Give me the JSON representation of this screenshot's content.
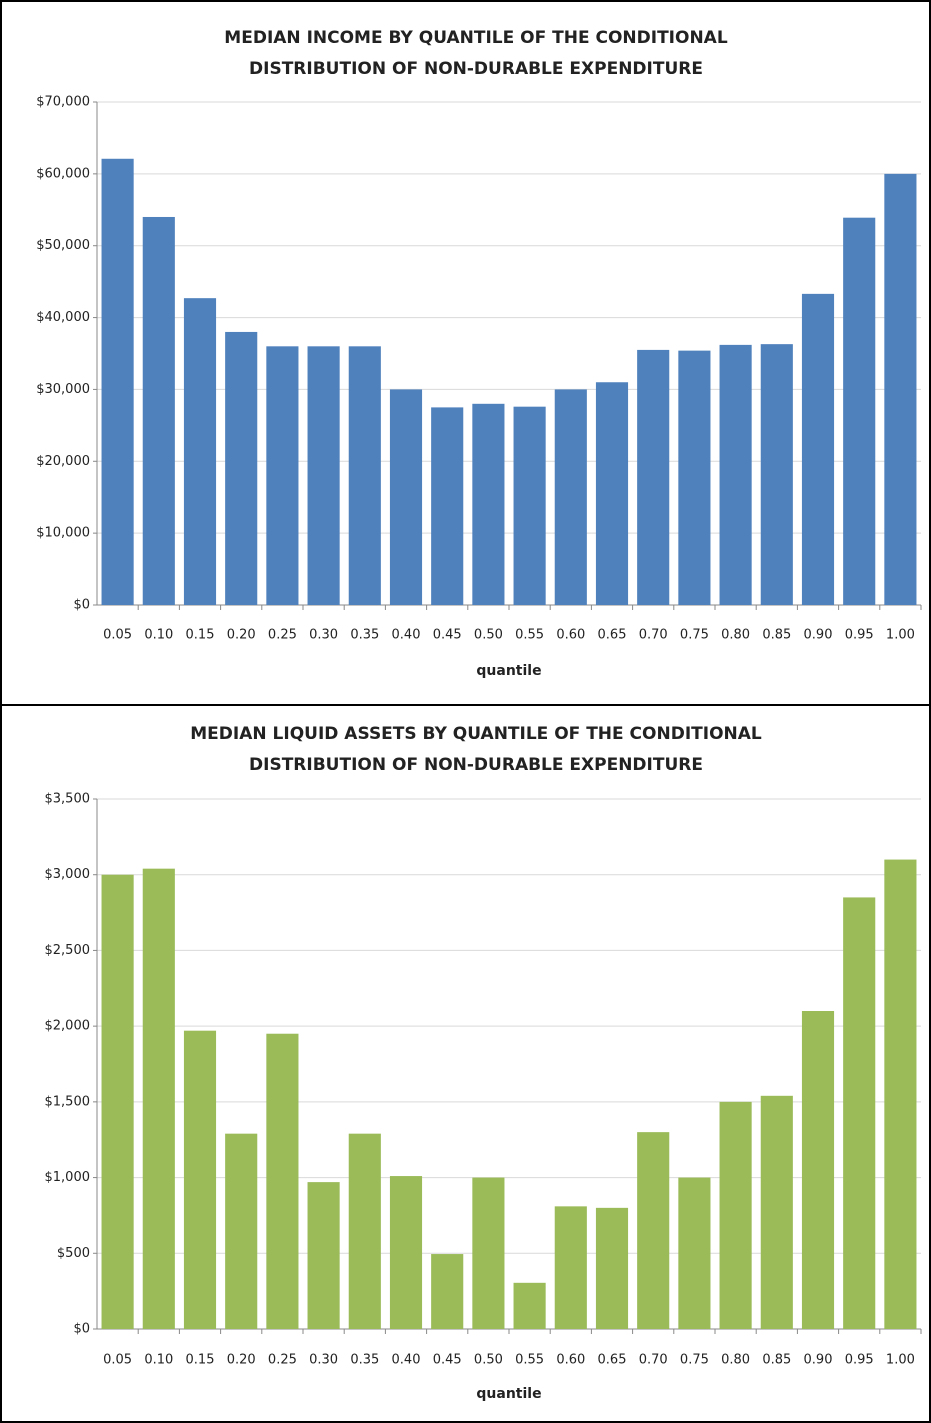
{
  "chart_data": [
    {
      "type": "bar",
      "title": [
        "MEDIAN INCOME BY QUANTILE  OF THE CONDITIONAL",
        "DISTRIBUTION OF NON-DURABLE EXPENDITURE"
      ],
      "x_label": "quantile",
      "categories": [
        "0.05",
        "0.10",
        "0.15",
        "0.20",
        "0.25",
        "0.30",
        "0.35",
        "0.40",
        "0.45",
        "0.50",
        "0.55",
        "0.60",
        "0.65",
        "0.70",
        "0.75",
        "0.80",
        "0.85",
        "0.90",
        "0.95",
        "1.00"
      ],
      "values": [
        62100,
        54000,
        42700,
        38000,
        36000,
        36000,
        36000,
        30000,
        27500,
        28000,
        27600,
        30000,
        31000,
        35500,
        35400,
        36200,
        36300,
        43300,
        53900,
        60000
      ],
      "color": "#4f81bd",
      "ylim": [
        0,
        70000
      ],
      "yticks": [
        {
          "value": 0,
          "label": "$0"
        },
        {
          "value": 10000,
          "label": "$10,000"
        },
        {
          "value": 20000,
          "label": "$20,000"
        },
        {
          "value": 30000,
          "label": "$30,000"
        },
        {
          "value": 40000,
          "label": "$40,000"
        },
        {
          "value": 50000,
          "label": "$50,000"
        },
        {
          "value": 60000,
          "label": "$60,000"
        },
        {
          "value": 70000,
          "label": "$70,000"
        }
      ],
      "grid": true
    },
    {
      "type": "bar",
      "title": [
        "MEDIAN LIQUID ASSETS BY QUANTILE  OF THE CONDITIONAL",
        "DISTRIBUTION OF NON-DURABLE EXPENDITURE"
      ],
      "x_label": "quantile",
      "categories": [
        "0.05",
        "0.10",
        "0.15",
        "0.20",
        "0.25",
        "0.30",
        "0.35",
        "0.40",
        "0.45",
        "0.50",
        "0.55",
        "0.60",
        "0.65",
        "0.70",
        "0.75",
        "0.80",
        "0.85",
        "0.90",
        "0.95",
        "1.00"
      ],
      "values": [
        3000,
        3040,
        1970,
        1290,
        1950,
        970,
        1290,
        1010,
        495,
        1000,
        305,
        810,
        800,
        1300,
        1000,
        1500,
        1540,
        2100,
        2850,
        3100
      ],
      "color": "#9bbb59",
      "ylim": [
        0,
        3500
      ],
      "yticks": [
        {
          "value": 0,
          "label": "$0"
        },
        {
          "value": 500,
          "label": "$500"
        },
        {
          "value": 1000,
          "label": "$1,000"
        },
        {
          "value": 1500,
          "label": "$1,500"
        },
        {
          "value": 2000,
          "label": "$2,000"
        },
        {
          "value": 2500,
          "label": "$2,500"
        },
        {
          "value": 3000,
          "label": "$3,000"
        },
        {
          "value": 3500,
          "label": "$3,500"
        }
      ],
      "grid": true
    }
  ]
}
